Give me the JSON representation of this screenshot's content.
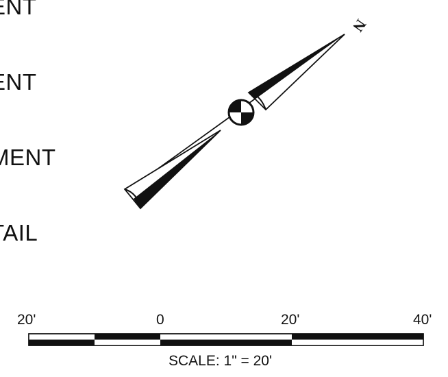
{
  "legend": {
    "line1": "ENT",
    "line2": "ENT",
    "line3": "MENT",
    "line4": "TAIL"
  },
  "north_arrow": {
    "letter": "N",
    "icon": "north-arrow-icon"
  },
  "scale": {
    "labels": [
      "20'",
      "0",
      "20'",
      "40'"
    ],
    "caption": "SCALE: 1\" = 20'"
  },
  "colors": {
    "ink": "#111111",
    "paper": "#ffffff"
  }
}
